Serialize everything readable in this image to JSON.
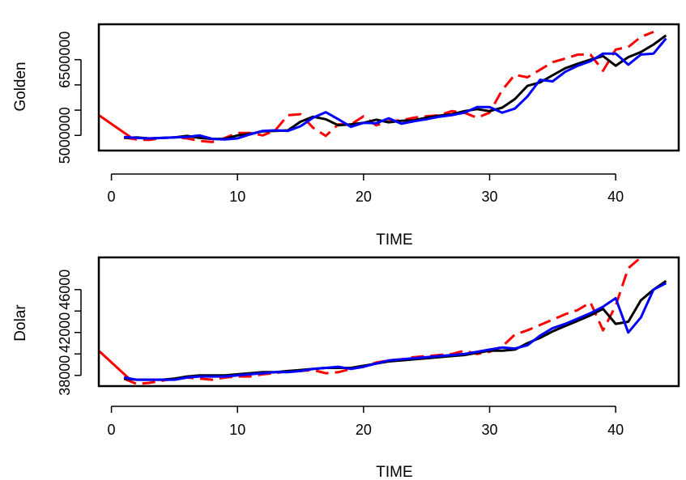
{
  "chart_data": [
    {
      "type": "line",
      "xlabel": "TIME",
      "ylabel": "Golden",
      "xlim": [
        -1,
        45
      ],
      "ylim": [
        4700000,
        7200000
      ],
      "x_ticks": [
        0,
        10,
        20,
        30,
        40
      ],
      "x_tick_labels": [
        "0",
        "10",
        "20",
        "30",
        "40"
      ],
      "y_ticks": [
        5000000,
        6500000
      ],
      "y_tick_labels": [
        "5000000",
        "6500000"
      ],
      "y_mid_ticks": [
        5500000,
        6000000
      ],
      "grid": false,
      "series": [
        {
          "color": "#ff0000",
          "dash": "dashed",
          "x": [
            1,
            2,
            3,
            4,
            5,
            6,
            7,
            8,
            9,
            10,
            11,
            12,
            13,
            14,
            15,
            16,
            17,
            18,
            19,
            20,
            21,
            22,
            23,
            24,
            25,
            26,
            27,
            28,
            29,
            30,
            31,
            32,
            33,
            34,
            35,
            36,
            37,
            38,
            39,
            40,
            41,
            42,
            43
          ],
          "y": [
            4960000,
            4920000,
            4910000,
            4950000,
            4960000,
            4940000,
            4890000,
            4870000,
            4950000,
            5050000,
            5050000,
            5000000,
            5100000,
            5400000,
            5420000,
            5150000,
            4990000,
            5220000,
            5220000,
            5380000,
            5200000,
            5280000,
            5300000,
            5350000,
            5380000,
            5400000,
            5480000,
            5450000,
            5350000,
            5450000,
            5900000,
            6200000,
            6150000,
            6300000,
            6450000,
            6520000,
            6600000,
            6600000,
            6280000,
            6700000,
            6750000,
            6950000,
            7050000
          ]
        },
        {
          "color": "#ff0000",
          "dash": "solid",
          "x": [
            -1,
            1.5
          ],
          "y": [
            5400000,
            4970000
          ]
        },
        {
          "color": "#000000",
          "dash": "solid",
          "x": [
            1,
            2,
            3,
            4,
            5,
            6,
            7,
            8,
            9,
            10,
            11,
            12,
            13,
            14,
            15,
            16,
            17,
            18,
            19,
            20,
            21,
            22,
            23,
            24,
            25,
            26,
            27,
            28,
            29,
            30,
            31,
            32,
            33,
            34,
            35,
            36,
            37,
            38,
            39,
            40,
            41,
            42,
            43,
            44
          ],
          "y": [
            4950000,
            4960000,
            4940000,
            4950000,
            4960000,
            4990000,
            4950000,
            4930000,
            4930000,
            5000000,
            5030000,
            5080000,
            5090000,
            5100000,
            5270000,
            5370000,
            5320000,
            5200000,
            5220000,
            5250000,
            5310000,
            5260000,
            5290000,
            5300000,
            5350000,
            5390000,
            5420000,
            5480000,
            5520000,
            5480000,
            5550000,
            5720000,
            5980000,
            6050000,
            6190000,
            6330000,
            6420000,
            6500000,
            6570000,
            6380000,
            6550000,
            6650000,
            6800000,
            6980000
          ]
        },
        {
          "color": "#0000ff",
          "dash": "solid",
          "x": [
            1,
            2,
            3,
            4,
            5,
            6,
            7,
            8,
            9,
            10,
            11,
            12,
            13,
            14,
            15,
            16,
            17,
            18,
            19,
            20,
            21,
            22,
            23,
            24,
            25,
            26,
            27,
            28,
            29,
            30,
            31,
            32,
            33,
            34,
            35,
            36,
            37,
            38,
            39,
            40,
            41,
            42,
            43,
            44
          ],
          "y": [
            4970000,
            4950000,
            4940000,
            4950000,
            4960000,
            4970000,
            5000000,
            4930000,
            4920000,
            4940000,
            5020000,
            5090000,
            5100000,
            5090000,
            5180000,
            5350000,
            5460000,
            5320000,
            5170000,
            5250000,
            5240000,
            5340000,
            5230000,
            5280000,
            5320000,
            5370000,
            5400000,
            5450000,
            5560000,
            5560000,
            5450000,
            5530000,
            5770000,
            6100000,
            6070000,
            6260000,
            6380000,
            6470000,
            6620000,
            6620000,
            6400000,
            6600000,
            6620000,
            6920000
          ]
        }
      ]
    },
    {
      "type": "line",
      "xlabel": "TIME",
      "ylabel": "Dolar",
      "xlim": [
        -1,
        45
      ],
      "ylim": [
        37000,
        49000
      ],
      "x_ticks": [
        0,
        10,
        20,
        30,
        40
      ],
      "x_tick_labels": [
        "0",
        "10",
        "20",
        "30",
        "40"
      ],
      "y_ticks": [
        38000,
        42000,
        46000
      ],
      "y_tick_labels": [
        "38000",
        "42000",
        "46000"
      ],
      "y_mid_ticks": [
        40000,
        44000
      ],
      "grid": false,
      "series": [
        {
          "color": "#ff0000",
          "dash": "dashed",
          "x": [
            1,
            2,
            3,
            4,
            5,
            6,
            7,
            8,
            9,
            10,
            11,
            12,
            13,
            14,
            15,
            16,
            17,
            18,
            19,
            20,
            21,
            22,
            23,
            24,
            25,
            26,
            27,
            28,
            29,
            30,
            31,
            32,
            33,
            34,
            35,
            36,
            37,
            38,
            39,
            40,
            41,
            42,
            43
          ],
          "y": [
            37700,
            37200,
            37300,
            37500,
            37700,
            37800,
            37700,
            37600,
            37800,
            37900,
            37900,
            38100,
            38200,
            38400,
            38400,
            38500,
            38200,
            38300,
            38600,
            38800,
            39200,
            39400,
            39500,
            39700,
            39800,
            39900,
            40000,
            40300,
            40000,
            40200,
            40700,
            41800,
            42200,
            42700,
            43200,
            43700,
            44100,
            44800,
            42200,
            44500,
            48000,
            49000,
            49500
          ]
        },
        {
          "color": "#ff0000",
          "dash": "solid",
          "x": [
            -1,
            1.5
          ],
          "y": [
            40300,
            37600
          ]
        },
        {
          "color": "#000000",
          "dash": "solid",
          "x": [
            1,
            2,
            3,
            4,
            5,
            6,
            7,
            8,
            9,
            10,
            11,
            12,
            13,
            14,
            15,
            16,
            17,
            18,
            19,
            20,
            21,
            22,
            23,
            24,
            25,
            26,
            27,
            28,
            29,
            30,
            31,
            32,
            33,
            34,
            35,
            36,
            37,
            38,
            39,
            40,
            41,
            42,
            43,
            44
          ],
          "y": [
            37700,
            37600,
            37600,
            37600,
            37700,
            37900,
            38000,
            38000,
            38000,
            38100,
            38200,
            38300,
            38300,
            38400,
            38500,
            38600,
            38700,
            38700,
            38700,
            38900,
            39100,
            39300,
            39400,
            39500,
            39600,
            39700,
            39800,
            39900,
            40100,
            40300,
            40300,
            40400,
            41000,
            41500,
            42100,
            42600,
            43100,
            43600,
            44200,
            42800,
            43000,
            45000,
            46000,
            46800
          ]
        },
        {
          "color": "#0000ff",
          "dash": "solid",
          "x": [
            1,
            2,
            3,
            4,
            5,
            6,
            7,
            8,
            9,
            10,
            11,
            12,
            13,
            14,
            15,
            16,
            17,
            18,
            19,
            20,
            21,
            22,
            23,
            24,
            25,
            26,
            27,
            28,
            29,
            30,
            31,
            32,
            33,
            34,
            35,
            36,
            37,
            38,
            39,
            40,
            41,
            42,
            43,
            44
          ],
          "y": [
            37800,
            37600,
            37600,
            37600,
            37600,
            37800,
            37900,
            37900,
            37900,
            38000,
            38100,
            38200,
            38300,
            38300,
            38400,
            38600,
            38700,
            38800,
            38600,
            38800,
            39100,
            39400,
            39500,
            39600,
            39700,
            39800,
            39900,
            40000,
            40200,
            40400,
            40600,
            40500,
            40800,
            41700,
            42400,
            42800,
            43300,
            43800,
            44400,
            45200,
            42000,
            43400,
            46000,
            46600
          ]
        }
      ]
    }
  ]
}
